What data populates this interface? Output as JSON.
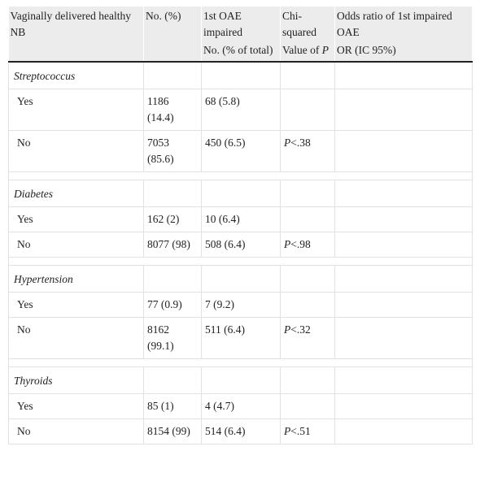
{
  "header": {
    "columns": [
      {
        "lines": [
          "Vaginally delivered healthy NB"
        ]
      },
      {
        "lines": [
          "No. (%)"
        ]
      },
      {
        "lines": [
          "1st OAE impaired",
          "No. (% of total)"
        ]
      },
      {
        "lines": [
          "Chi-squared",
          "Value of"
        ],
        "symbol": "P"
      },
      {
        "lines": [
          "Odds ratio of 1st impaired OAE",
          "OR (IC 95%)"
        ]
      }
    ]
  },
  "sections": [
    {
      "title": "Streptococcus",
      "rows": [
        {
          "label": "Yes",
          "no": "1186 (14.4)",
          "oae": "68 (5.8)"
        },
        {
          "label": "No",
          "no": "7053 (85.6)",
          "oae": "450 (6.5)",
          "chi": {
            "symbol": "P",
            "value": "<.38"
          }
        }
      ]
    },
    {
      "title": "Diabetes",
      "rows": [
        {
          "label": "Yes",
          "no": "162 (2)",
          "oae": "10 (6.4)"
        },
        {
          "label": "No",
          "no": "8077 (98)",
          "oae": "508 (6.4)",
          "chi": {
            "symbol": "P",
            "value": "<.98"
          }
        }
      ]
    },
    {
      "title": "Hypertension",
      "rows": [
        {
          "label": "Yes",
          "no": "77 (0.9)",
          "oae": "7 (9.2)"
        },
        {
          "label": "No",
          "no": "8162 (99.1)",
          "oae": "511 (6.4)",
          "chi": {
            "symbol": "P",
            "value": "<.32"
          }
        }
      ]
    },
    {
      "title": "Thyroids",
      "rows": [
        {
          "label": "Yes",
          "no": "85 (1)",
          "oae": "4 (4.7)"
        },
        {
          "label": "No",
          "no": "8154 (99)",
          "oae": "514 (6.4)",
          "chi": {
            "symbol": "P",
            "value": "<.51"
          }
        }
      ]
    }
  ]
}
